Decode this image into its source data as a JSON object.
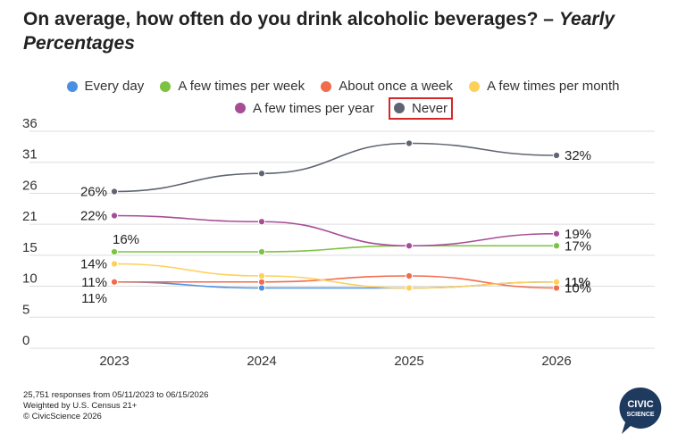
{
  "title_main": "On average, how often do you drink alcoholic beverages? – ",
  "title_italic": "Yearly Percentages",
  "chart_data": {
    "type": "line",
    "title": "On average, how often do you drink alcoholic beverages? – Yearly Percentages",
    "categories": [
      "2023",
      "2024",
      "2025",
      "2026"
    ],
    "ylim": [
      0,
      36
    ],
    "yticks": [
      "0",
      "5",
      "10",
      "15",
      "21",
      "26",
      "31",
      "36"
    ],
    "ytick_values": [
      0,
      5.14,
      10.29,
      15.43,
      20.57,
      25.71,
      30.86,
      36
    ],
    "grid": true,
    "legend_position": "top",
    "highlighted_series": "Never",
    "series": [
      {
        "name": "Every day",
        "color": "#4a90e2",
        "values": [
          11,
          10,
          10,
          11
        ],
        "labels": [
          {
            "index": 0,
            "text": "11%",
            "pos": "below"
          },
          {
            "index": 3,
            "text": "11%",
            "pos": "right"
          }
        ]
      },
      {
        "name": "A few times per week",
        "color": "#7dc242",
        "values": [
          16,
          16,
          17,
          17
        ],
        "labels": [
          {
            "index": 0,
            "text": "16%",
            "pos": "above"
          },
          {
            "index": 3,
            "text": "17%",
            "pos": "right"
          }
        ]
      },
      {
        "name": "About once a week",
        "color": "#f26b4c",
        "values": [
          11,
          11,
          12,
          10
        ],
        "labels": [
          {
            "index": 0,
            "text": "11%",
            "pos": "left"
          },
          {
            "index": 3,
            "text": "10%",
            "pos": "right"
          }
        ]
      },
      {
        "name": "A few times per month",
        "color": "#fdd05a",
        "values": [
          14,
          12,
          10,
          11
        ],
        "labels": [
          {
            "index": 0,
            "text": "14%",
            "pos": "left"
          },
          {
            "index": 3,
            "text": "11%",
            "pos": "right"
          }
        ]
      },
      {
        "name": "A few times per year",
        "color": "#a64d96",
        "values": [
          22,
          21,
          17,
          19
        ],
        "labels": [
          {
            "index": 0,
            "text": "22%",
            "pos": "left"
          },
          {
            "index": 3,
            "text": "19%",
            "pos": "right"
          }
        ]
      },
      {
        "name": "Never",
        "color": "#5e6472",
        "values": [
          26,
          29,
          34,
          32
        ],
        "labels": [
          {
            "index": 0,
            "text": "26%",
            "pos": "left"
          },
          {
            "index": 3,
            "text": "32%",
            "pos": "right"
          }
        ]
      }
    ]
  },
  "footnote": [
    "25,751 responses from 05/11/2023 to 06/15/2026",
    "Weighted by U.S. Census 21+",
    "© CivicScience 2026"
  ],
  "logo": {
    "line1": "CIVIC",
    "line2": "SCIENCE",
    "color": "#1f3a5f"
  }
}
